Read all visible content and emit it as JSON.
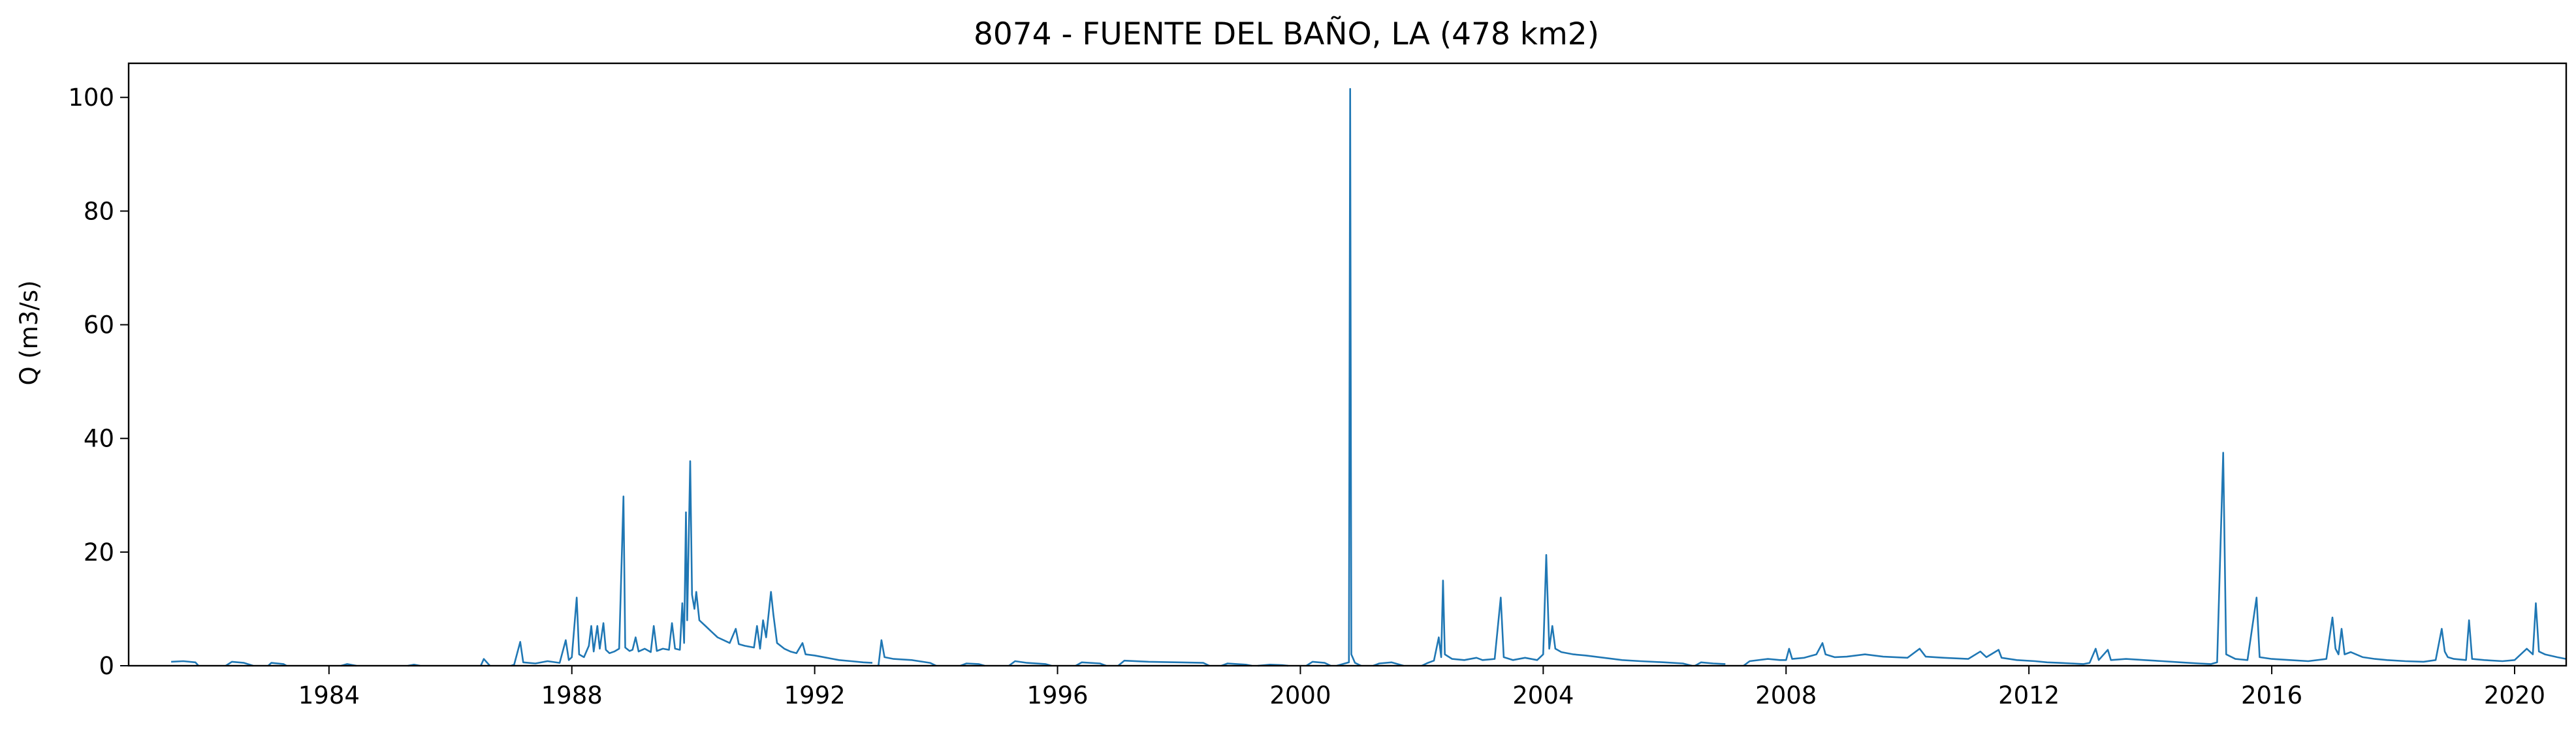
{
  "chart_data": {
    "type": "line",
    "title": "8074 - FUENTE DEL BAÑO, LA (478 km2)",
    "xlabel": "",
    "ylabel": "Q (m3/s)",
    "xlim": [
      1980.7,
      2020.85
    ],
    "ylim": [
      0,
      106
    ],
    "grid": false,
    "legend": "none",
    "line_color": "#1f77b4",
    "x_ticks": [
      1984,
      1988,
      1992,
      1996,
      2000,
      2004,
      2008,
      2012,
      2016,
      2020
    ],
    "x_tick_labels": [
      "1984",
      "1988",
      "1992",
      "1996",
      "2000",
      "2004",
      "2008",
      "2012",
      "2016",
      "2020"
    ],
    "y_ticks": [
      0,
      20,
      40,
      60,
      80,
      100
    ],
    "y_tick_labels": [
      "0",
      "20",
      "40",
      "60",
      "80",
      "100"
    ],
    "series": [
      {
        "segments": [
          [
            [
              1981.4,
              0.7
            ],
            [
              1981.6,
              0.8
            ],
            [
              1981.8,
              0.6
            ],
            [
              1981.85,
              0.0
            ]
          ],
          [
            [
              1982.3,
              0.0
            ],
            [
              1982.4,
              0.7
            ],
            [
              1982.6,
              0.5
            ],
            [
              1982.75,
              0.0
            ]
          ],
          [
            [
              1983.0,
              0.0
            ],
            [
              1983.05,
              0.5
            ],
            [
              1983.25,
              0.3
            ],
            [
              1983.3,
              0.0
            ]
          ],
          [
            [
              1984.2,
              0.0
            ],
            [
              1984.3,
              0.3
            ],
            [
              1984.45,
              0.0
            ]
          ],
          [
            [
              1985.3,
              0.0
            ],
            [
              1985.4,
              0.2
            ],
            [
              1985.5,
              0.0
            ]
          ],
          [
            [
              1986.5,
              0.0
            ],
            [
              1986.55,
              1.2
            ],
            [
              1986.65,
              0.0
            ]
          ],
          [
            [
              1987.0,
              0.0
            ],
            [
              1987.05,
              0.2
            ],
            [
              1987.15,
              4.2
            ],
            [
              1987.2,
              0.6
            ],
            [
              1987.4,
              0.4
            ],
            [
              1987.6,
              0.8
            ],
            [
              1987.8,
              0.5
            ],
            [
              1987.9,
              4.5
            ],
            [
              1987.95,
              1.0
            ],
            [
              1988.0,
              1.5
            ],
            [
              1988.08,
              12.0
            ],
            [
              1988.12,
              2.0
            ],
            [
              1988.2,
              1.5
            ],
            [
              1988.28,
              3.5
            ],
            [
              1988.32,
              7.0
            ],
            [
              1988.36,
              2.5
            ],
            [
              1988.42,
              7.0
            ],
            [
              1988.46,
              3.0
            ],
            [
              1988.52,
              7.5
            ],
            [
              1988.56,
              2.8
            ],
            [
              1988.62,
              2.2
            ],
            [
              1988.7,
              2.5
            ],
            [
              1988.78,
              3.0
            ],
            [
              1988.85,
              29.8
            ],
            [
              1988.88,
              3.2
            ],
            [
              1988.95,
              2.6
            ],
            [
              1989.0,
              2.8
            ],
            [
              1989.05,
              5.0
            ],
            [
              1989.1,
              2.5
            ],
            [
              1989.2,
              3.0
            ],
            [
              1989.3,
              2.4
            ],
            [
              1989.35,
              7.0
            ],
            [
              1989.4,
              2.6
            ],
            [
              1989.5,
              3.0
            ],
            [
              1989.6,
              2.8
            ],
            [
              1989.65,
              7.5
            ],
            [
              1989.7,
              3.0
            ],
            [
              1989.78,
              2.8
            ],
            [
              1989.82,
              11.0
            ],
            [
              1989.85,
              4.0
            ],
            [
              1989.88,
              27.0
            ],
            [
              1989.9,
              8.0
            ],
            [
              1989.95,
              36.0
            ],
            [
              1989.98,
              12.5
            ],
            [
              1990.02,
              10.0
            ],
            [
              1990.05,
              13.0
            ],
            [
              1990.1,
              8.0
            ],
            [
              1990.2,
              7.0
            ],
            [
              1990.3,
              6.0
            ],
            [
              1990.4,
              5.0
            ],
            [
              1990.5,
              4.5
            ],
            [
              1990.6,
              4.0
            ],
            [
              1990.7,
              6.5
            ],
            [
              1990.75,
              3.8
            ],
            [
              1990.85,
              3.5
            ],
            [
              1991.0,
              3.2
            ],
            [
              1991.05,
              7.0
            ],
            [
              1991.1,
              3.0
            ],
            [
              1991.15,
              8.0
            ],
            [
              1991.2,
              5.0
            ],
            [
              1991.28,
              13.0
            ],
            [
              1991.32,
              9.0
            ],
            [
              1991.38,
              4.0
            ],
            [
              1991.5,
              3.0
            ],
            [
              1991.6,
              2.5
            ],
            [
              1991.7,
              2.2
            ],
            [
              1991.8,
              4.0
            ],
            [
              1991.85,
              2.0
            ],
            [
              1992.0,
              1.8
            ],
            [
              1992.2,
              1.4
            ],
            [
              1992.4,
              1.0
            ],
            [
              1992.6,
              0.8
            ],
            [
              1992.8,
              0.6
            ],
            [
              1992.95,
              0.5
            ]
          ],
          [
            [
              1993.05,
              0.0
            ],
            [
              1993.1,
              4.5
            ],
            [
              1993.15,
              1.5
            ],
            [
              1993.3,
              1.2
            ],
            [
              1993.6,
              1.0
            ],
            [
              1993.9,
              0.5
            ],
            [
              1994.0,
              0.0
            ]
          ],
          [
            [
              1994.4,
              0.0
            ],
            [
              1994.5,
              0.4
            ],
            [
              1994.7,
              0.3
            ],
            [
              1994.8,
              0.0
            ]
          ],
          [
            [
              1995.2,
              0.0
            ],
            [
              1995.3,
              0.8
            ],
            [
              1995.5,
              0.5
            ],
            [
              1995.8,
              0.3
            ],
            [
              1995.9,
              0.0
            ]
          ],
          [
            [
              1996.3,
              0.0
            ],
            [
              1996.4,
              0.6
            ],
            [
              1996.7,
              0.4
            ],
            [
              1996.8,
              0.0
            ]
          ],
          [
            [
              1997.0,
              0.0
            ],
            [
              1997.1,
              0.9
            ],
            [
              1997.5,
              0.7
            ],
            [
              1998.0,
              0.6
            ],
            [
              1998.4,
              0.5
            ],
            [
              1998.5,
              0.0
            ]
          ],
          [
            [
              1998.7,
              0.0
            ],
            [
              1998.8,
              0.4
            ],
            [
              1999.1,
              0.2
            ],
            [
              1999.2,
              0.0
            ]
          ],
          [
            [
              1999.3,
              0.0
            ],
            [
              1999.5,
              0.2
            ],
            [
              1999.7,
              0.1
            ],
            [
              1999.8,
              0.0
            ]
          ],
          [
            [
              2000.1,
              0.0
            ],
            [
              2000.2,
              0.7
            ],
            [
              2000.4,
              0.5
            ],
            [
              2000.5,
              0.0
            ]
          ],
          [
            [
              2000.6,
              0.0
            ],
            [
              2000.7,
              0.3
            ],
            [
              2000.8,
              0.6
            ],
            [
              2000.82,
              101.5
            ],
            [
              2000.84,
              2.0
            ],
            [
              2000.9,
              0.5
            ],
            [
              2001.0,
              0.0
            ]
          ],
          [
            [
              2001.2,
              0.0
            ],
            [
              2001.3,
              0.4
            ],
            [
              2001.5,
              0.6
            ],
            [
              2001.6,
              0.3
            ],
            [
              2001.7,
              0.0
            ]
          ],
          [
            [
              2002.0,
              0.0
            ],
            [
              2002.1,
              0.5
            ],
            [
              2002.2,
              0.9
            ],
            [
              2002.28,
              5.0
            ],
            [
              2002.32,
              1.5
            ],
            [
              2002.35,
              15.0
            ],
            [
              2002.38,
              2.0
            ],
            [
              2002.5,
              1.2
            ],
            [
              2002.7,
              1.0
            ],
            [
              2002.9,
              1.4
            ],
            [
              2003.0,
              1.0
            ],
            [
              2003.2,
              1.2
            ],
            [
              2003.3,
              12.0
            ],
            [
              2003.35,
              1.5
            ],
            [
              2003.5,
              1.0
            ],
            [
              2003.7,
              1.4
            ],
            [
              2003.9,
              1.0
            ],
            [
              2004.0,
              2.0
            ],
            [
              2004.05,
              19.5
            ],
            [
              2004.1,
              3.0
            ],
            [
              2004.15,
              7.0
            ],
            [
              2004.2,
              3.0
            ],
            [
              2004.3,
              2.4
            ],
            [
              2004.5,
              2.0
            ],
            [
              2004.7,
              1.8
            ],
            [
              2005.0,
              1.4
            ],
            [
              2005.3,
              1.0
            ],
            [
              2005.6,
              0.8
            ],
            [
              2006.0,
              0.6
            ],
            [
              2006.3,
              0.4
            ],
            [
              2006.45,
              0.0
            ]
          ],
          [
            [
              2006.5,
              0.0
            ],
            [
              2006.6,
              0.6
            ],
            [
              2006.8,
              0.4
            ],
            [
              2007.0,
              0.3
            ]
          ],
          [
            [
              2007.3,
              0.0
            ],
            [
              2007.4,
              0.8
            ],
            [
              2007.7,
              1.2
            ],
            [
              2007.9,
              1.0
            ],
            [
              2008.0,
              1.0
            ],
            [
              2008.05,
              3.0
            ],
            [
              2008.1,
              1.2
            ],
            [
              2008.3,
              1.4
            ],
            [
              2008.5,
              2.0
            ],
            [
              2008.6,
              4.0
            ],
            [
              2008.65,
              2.0
            ],
            [
              2008.8,
              1.5
            ],
            [
              2009.0,
              1.6
            ],
            [
              2009.3,
              2.0
            ],
            [
              2009.6,
              1.6
            ],
            [
              2010.0,
              1.4
            ],
            [
              2010.2,
              3.0
            ],
            [
              2010.3,
              1.6
            ],
            [
              2010.6,
              1.4
            ],
            [
              2011.0,
              1.2
            ],
            [
              2011.2,
              2.5
            ],
            [
              2011.3,
              1.5
            ],
            [
              2011.5,
              2.8
            ],
            [
              2011.55,
              1.4
            ],
            [
              2011.8,
              1.0
            ],
            [
              2012.1,
              0.8
            ],
            [
              2012.3,
              0.6
            ],
            [
              2012.5,
              0.5
            ],
            [
              2012.7,
              0.4
            ],
            [
              2012.9,
              0.3
            ],
            [
              2013.0,
              0.5
            ],
            [
              2013.1,
              3.0
            ],
            [
              2013.15,
              1.0
            ],
            [
              2013.3,
              2.8
            ],
            [
              2013.35,
              1.0
            ],
            [
              2013.6,
              1.2
            ],
            [
              2013.9,
              1.0
            ],
            [
              2014.2,
              0.8
            ],
            [
              2014.5,
              0.6
            ],
            [
              2014.8,
              0.4
            ],
            [
              2015.0,
              0.3
            ],
            [
              2015.1,
              0.6
            ],
            [
              2015.2,
              37.5
            ],
            [
              2015.25,
              2.0
            ],
            [
              2015.4,
              1.2
            ],
            [
              2015.6,
              1.0
            ],
            [
              2015.75,
              12.0
            ],
            [
              2015.8,
              1.5
            ],
            [
              2016.0,
              1.2
            ],
            [
              2016.3,
              1.0
            ],
            [
              2016.6,
              0.8
            ],
            [
              2016.9,
              1.2
            ],
            [
              2017.0,
              8.5
            ],
            [
              2017.05,
              3.0
            ],
            [
              2017.1,
              2.0
            ],
            [
              2017.15,
              6.5
            ],
            [
              2017.2,
              2.0
            ],
            [
              2017.3,
              2.4
            ],
            [
              2017.5,
              1.5
            ],
            [
              2017.7,
              1.2
            ],
            [
              2017.9,
              1.0
            ],
            [
              2018.2,
              0.8
            ],
            [
              2018.5,
              0.7
            ],
            [
              2018.7,
              1.0
            ],
            [
              2018.8,
              6.5
            ],
            [
              2018.85,
              2.5
            ],
            [
              2018.9,
              1.5
            ],
            [
              2019.0,
              1.2
            ],
            [
              2019.2,
              1.0
            ],
            [
              2019.25,
              8.0
            ],
            [
              2019.3,
              1.2
            ],
            [
              2019.5,
              1.0
            ],
            [
              2019.8,
              0.8
            ],
            [
              2020.0,
              1.0
            ],
            [
              2020.2,
              3.0
            ],
            [
              2020.3,
              2.0
            ],
            [
              2020.35,
              11.0
            ],
            [
              2020.4,
              2.5
            ],
            [
              2020.5,
              2.0
            ],
            [
              2020.7,
              1.5
            ],
            [
              2020.85,
              1.2
            ]
          ]
        ]
      }
    ]
  }
}
